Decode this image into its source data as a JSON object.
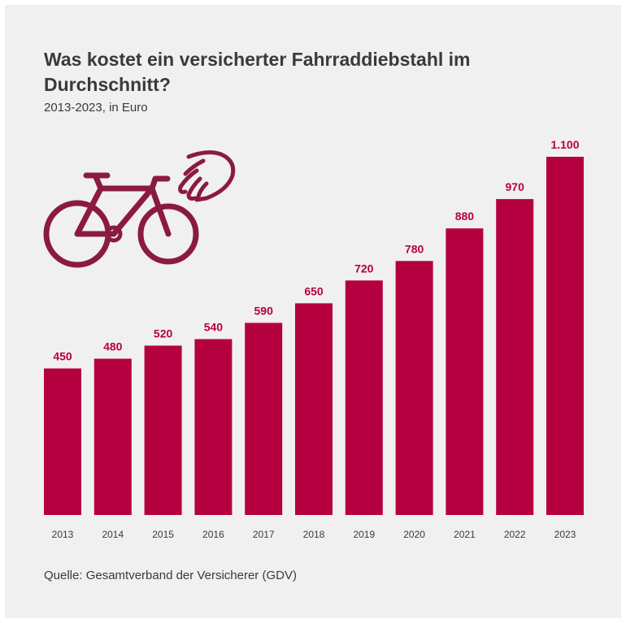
{
  "title": "Was kostet ein versicherter Fahrraddiebstahl im Durchschnitt?",
  "subtitle": "2013-2023, in Euro",
  "source": "Quelle: Gesamtverband der Versicherer (GDV)",
  "colors": {
    "bar": "#b5003f",
    "label": "#b5003f",
    "icon": "#8b1a42",
    "text": "#3a3a3a",
    "background": "#f0f0f0"
  },
  "icons": [
    "bicycle-icon",
    "hand-icon"
  ],
  "chart_data": {
    "type": "bar",
    "categories": [
      "2013",
      "2014",
      "2015",
      "2016",
      "2017",
      "2018",
      "2019",
      "2020",
      "2021",
      "2022",
      "2023"
    ],
    "values": [
      450,
      480,
      520,
      540,
      590,
      650,
      720,
      780,
      880,
      970,
      1100
    ],
    "value_labels": [
      "450",
      "480",
      "520",
      "540",
      "590",
      "650",
      "720",
      "780",
      "880",
      "970",
      "1.100"
    ],
    "ylim": [
      0,
      1100
    ],
    "grid": false,
    "title": "Was kostet ein versicherter Fahrraddiebstahl im Durchschnitt?",
    "subtitle": "2013-2023, in Euro",
    "xlabel": "",
    "ylabel": ""
  }
}
